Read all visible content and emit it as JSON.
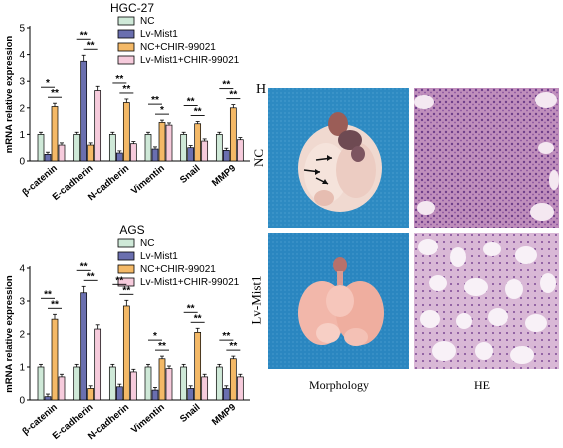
{
  "panel_letter": "H",
  "histology": {
    "row_labels": [
      "NC",
      "Lv-Mist1"
    ],
    "col_labels": [
      "Morphology",
      "HE"
    ]
  },
  "colors": {
    "NC": "#cfe9d8",
    "Lv-Mist1": "#6a6faf",
    "NC+CHIR-99021": "#f4b967",
    "Lv-Mist1+CHIR-99021": "#f6cbdc"
  },
  "chart_data": [
    {
      "type": "bar",
      "title": "HGC-27",
      "ylabel": "mRNA relative expression",
      "ylim": [
        0,
        5
      ],
      "yticks": [
        0,
        1,
        2,
        3,
        4,
        5
      ],
      "categories": [
        "β-catenin",
        "E-cadherin",
        "N-cadherin",
        "Vimentin",
        "Snail",
        "MMP9"
      ],
      "legend": [
        "NC",
        "Lv-Mist1",
        "NC+CHIR-99021",
        "Lv-Mist1+CHIR-99021"
      ],
      "series": [
        {
          "name": "NC",
          "values": [
            1.0,
            1.0,
            1.0,
            1.0,
            1.0,
            1.0
          ]
        },
        {
          "name": "Lv-Mist1",
          "values": [
            0.25,
            3.75,
            0.3,
            0.45,
            0.5,
            0.4
          ]
        },
        {
          "name": "NC+CHIR-99021",
          "values": [
            2.05,
            0.6,
            2.2,
            1.45,
            1.4,
            2.0
          ]
        },
        {
          "name": "Lv-Mist1+CHIR-99021",
          "values": [
            0.6,
            2.65,
            0.65,
            1.35,
            0.75,
            0.8
          ]
        }
      ],
      "significance": [
        {
          "labels": [
            "*",
            "**"
          ]
        },
        {
          "labels": [
            "**",
            "**"
          ]
        },
        {
          "labels": [
            "**",
            "**"
          ]
        },
        {
          "labels": [
            "**",
            "*"
          ]
        },
        {
          "labels": [
            "**",
            "**"
          ]
        },
        {
          "labels": [
            "**",
            "**"
          ]
        }
      ]
    },
    {
      "type": "bar",
      "title": "AGS",
      "ylabel": "mRNA relative expression",
      "ylim": [
        0,
        4
      ],
      "yticks": [
        0,
        1,
        2,
        3,
        4
      ],
      "categories": [
        "β-catenin",
        "E-cadherin",
        "N-cadherin",
        "Vimentin",
        "Snail",
        "MMP9"
      ],
      "legend": [
        "NC",
        "Lv-Mist1",
        "NC+CHIR-99021",
        "Lv-Mist1+CHIR-99021"
      ],
      "series": [
        {
          "name": "NC",
          "values": [
            1.0,
            1.0,
            1.0,
            1.0,
            1.0,
            1.0
          ]
        },
        {
          "name": "Lv-Mist1",
          "values": [
            0.1,
            3.25,
            0.4,
            0.3,
            0.35,
            0.35
          ]
        },
        {
          "name": "NC+CHIR-99021",
          "values": [
            2.45,
            0.35,
            2.85,
            1.25,
            2.05,
            1.25
          ]
        },
        {
          "name": "Lv-Mist1+CHIR-99021",
          "values": [
            0.7,
            2.15,
            0.85,
            0.95,
            0.7,
            0.7
          ]
        }
      ],
      "significance": [
        {
          "labels": [
            "**",
            "**"
          ]
        },
        {
          "labels": [
            "**",
            "**"
          ]
        },
        {
          "labels": [
            "**",
            "**"
          ]
        },
        {
          "labels": [
            "*",
            "**"
          ]
        },
        {
          "labels": [
            "**",
            "**"
          ]
        },
        {
          "labels": [
            "**",
            "**"
          ]
        }
      ]
    }
  ]
}
